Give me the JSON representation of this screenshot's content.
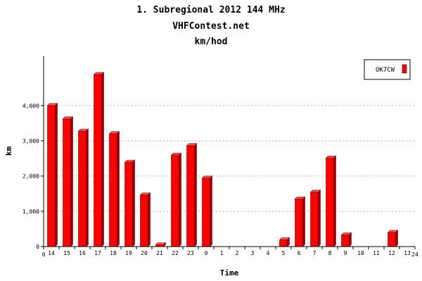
{
  "chart_data": {
    "type": "bar",
    "title": "1. Subregional 2012 144 MHz",
    "subtitle": "VHFContest.net",
    "subtitle2": "km/hod",
    "xlabel": "Time",
    "ylabel": "km",
    "ylim": [
      0,
      5400
    ],
    "yticks": [
      0,
      1000,
      2000,
      3000,
      4000
    ],
    "ytick_labels": [
      "0",
      "1,000",
      "2,000",
      "3,000",
      "4,000"
    ],
    "xlim": [
      0,
      24
    ],
    "xaxis_end_labels": [
      "0",
      "24"
    ],
    "grid": true,
    "legend_position": "top-right",
    "categories": [
      "14",
      "15",
      "16",
      "17",
      "18",
      "19",
      "20",
      "21",
      "22",
      "23",
      "0",
      "1",
      "2",
      "3",
      "4",
      "5",
      "6",
      "7",
      "8",
      "9",
      "10",
      "11",
      "12",
      "13"
    ],
    "series": [
      {
        "name": "OK7CW",
        "color": "#ff0000",
        "values": [
          4000,
          3620,
          3270,
          4880,
          3200,
          2390,
          1460,
          50,
          2590,
          2860,
          1940,
          0,
          0,
          0,
          0,
          190,
          1350,
          1540,
          2510,
          330,
          0,
          0,
          400,
          0
        ]
      }
    ]
  }
}
